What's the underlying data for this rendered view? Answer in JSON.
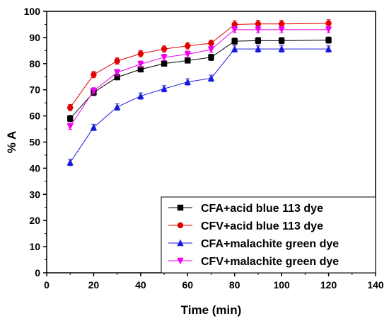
{
  "chart_data": {
    "type": "line",
    "xlabel": "Time (min)",
    "ylabel": "% A",
    "xlim": [
      0,
      140
    ],
    "ylim": [
      0,
      100
    ],
    "xticks": [
      0,
      20,
      40,
      60,
      80,
      100,
      120,
      140
    ],
    "yticks": [
      0,
      10,
      20,
      30,
      40,
      50,
      60,
      70,
      80,
      90,
      100
    ],
    "grid": false,
    "legend_position": "bottom-right",
    "x": [
      10,
      20,
      30,
      40,
      50,
      60,
      70,
      80,
      90,
      100,
      120
    ],
    "series": [
      {
        "name": "CFA+acid blue 113 dye",
        "color": "#000000",
        "marker": "square",
        "values": [
          59.0,
          69.0,
          74.8,
          77.8,
          80.0,
          81.2,
          82.4,
          88.6,
          88.8,
          88.8,
          89.0
        ],
        "errors": [
          1.2,
          1.2,
          1.0,
          1.0,
          1.0,
          1.0,
          1.2,
          1.2,
          1.2,
          1.2,
          1.2
        ]
      },
      {
        "name": "CFV+acid blue 113 dye",
        "color": "#e00000",
        "marker": "circle",
        "values": [
          63.2,
          75.8,
          81.0,
          83.8,
          85.6,
          86.8,
          87.8,
          95.0,
          95.2,
          95.2,
          95.4
        ],
        "errors": [
          1.2,
          1.2,
          1.2,
          1.2,
          1.2,
          1.2,
          1.2,
          1.4,
          1.4,
          1.4,
          1.4
        ]
      },
      {
        "name": "CFA+malachite green dye",
        "color": "#1a1adc",
        "marker": "triangle-up",
        "values": [
          42.2,
          55.6,
          63.4,
          67.6,
          70.4,
          73.0,
          74.4,
          85.6,
          85.6,
          85.6,
          85.6
        ],
        "errors": [
          1.2,
          1.2,
          1.2,
          1.2,
          1.2,
          1.2,
          1.2,
          1.2,
          1.2,
          1.2,
          1.2
        ]
      },
      {
        "name": "CFV+malachite green dye",
        "color": "#ee00ee",
        "marker": "triangle-down",
        "values": [
          56.0,
          69.6,
          76.6,
          79.8,
          82.4,
          83.6,
          85.4,
          93.0,
          93.0,
          93.0,
          93.0
        ],
        "errors": [
          1.2,
          1.2,
          1.2,
          1.2,
          1.2,
          1.2,
          1.2,
          1.2,
          1.2,
          1.2,
          1.2
        ]
      }
    ]
  }
}
